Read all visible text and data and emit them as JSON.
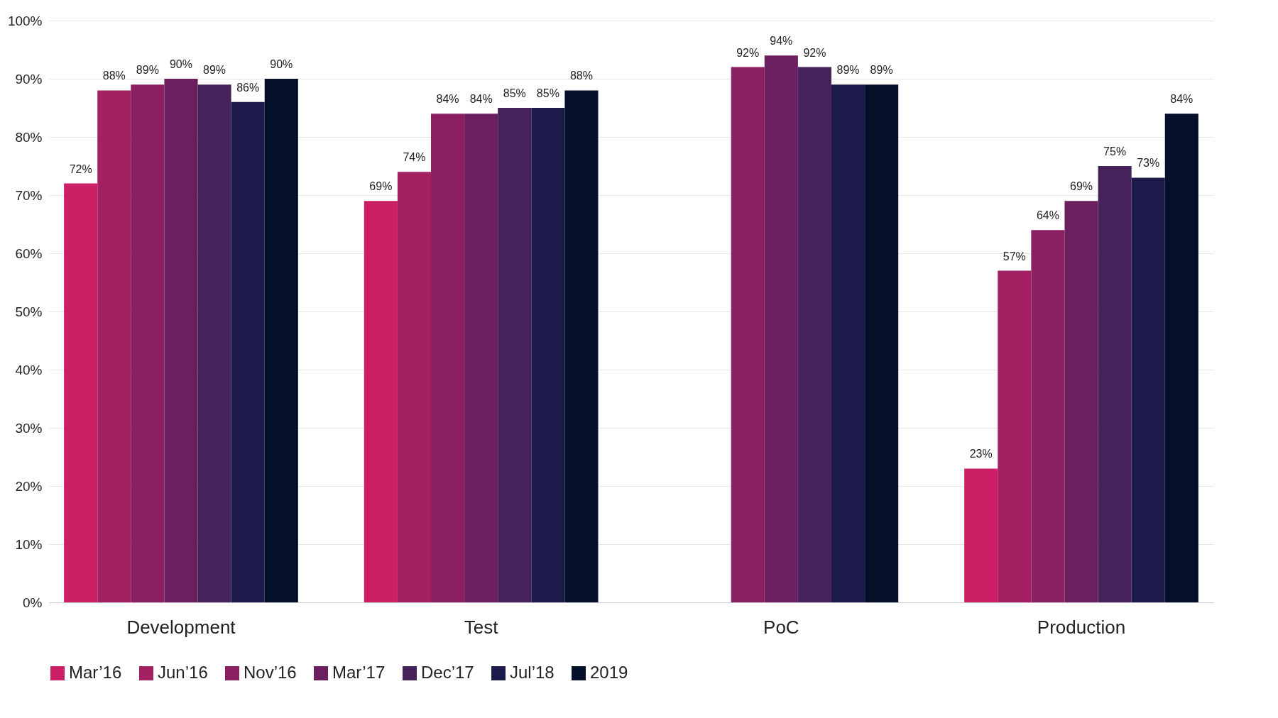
{
  "chart_data": {
    "type": "bar",
    "categories": [
      "Development",
      "Test",
      "PoC",
      "Production"
    ],
    "series": [
      {
        "name": "Mar’16",
        "color": "#cc1f66",
        "values": [
          72,
          69,
          null,
          23
        ],
        "value_labels": [
          "72%",
          "69%",
          null,
          "23%"
        ]
      },
      {
        "name": "Jun’16",
        "color": "#a32063",
        "values": [
          88,
          74,
          null,
          57
        ],
        "value_labels": [
          "88%",
          "74%",
          null,
          "57%"
        ]
      },
      {
        "name": "Nov’16",
        "color": "#8a2062",
        "values": [
          89,
          84,
          92,
          64
        ],
        "value_labels": [
          "89%",
          "84%",
          "92%",
          "64%"
        ]
      },
      {
        "name": "Mar’17",
        "color": "#6c1f5e",
        "values": [
          90,
          84,
          94,
          69
        ],
        "value_labels": [
          "90%",
          "84%",
          "94%",
          "69%"
        ]
      },
      {
        "name": "Dec’17",
        "color": "#45235a",
        "values": [
          89,
          85,
          92,
          75
        ],
        "value_labels": [
          "89%",
          "85%",
          "92%",
          "75%"
        ]
      },
      {
        "name": "Jul’18",
        "color": "#1d1a4c",
        "values": [
          86,
          85,
          89,
          73
        ],
        "value_labels": [
          "86%",
          "85%",
          "89%",
          "73%"
        ]
      },
      {
        "name": "2019",
        "color": "#05112b",
        "values": [
          90,
          88,
          89,
          84
        ],
        "value_labels": [
          "90%",
          "88%",
          "89%",
          "84%"
        ]
      }
    ],
    "ylim": [
      0,
      100
    ],
    "yticks": [
      {
        "value": 0,
        "label": "0%"
      },
      {
        "value": 10,
        "label": "10%"
      },
      {
        "value": 20,
        "label": "20%"
      },
      {
        "value": 30,
        "label": "30%"
      },
      {
        "value": 40,
        "label": "40%"
      },
      {
        "value": 50,
        "label": "50%"
      },
      {
        "value": 60,
        "label": "60%"
      },
      {
        "value": 70,
        "label": "70%"
      },
      {
        "value": 80,
        "label": "80%"
      },
      {
        "value": 90,
        "label": "90%"
      },
      {
        "value": 100,
        "label": "100%"
      }
    ],
    "grid": "y",
    "legend": "bottom"
  }
}
